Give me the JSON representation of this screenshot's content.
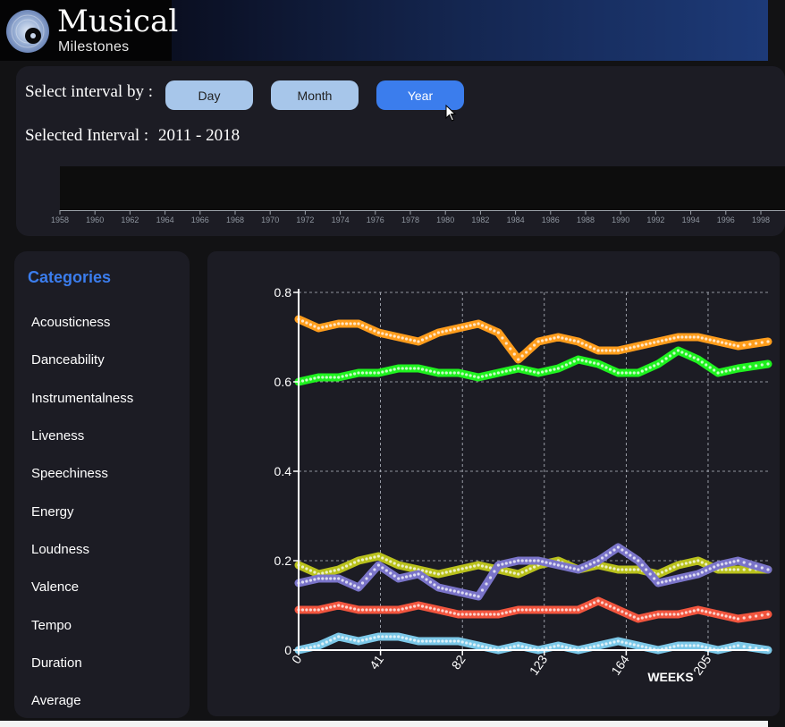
{
  "header": {
    "title": "Musical",
    "subtitle": "Milestones"
  },
  "interval": {
    "label": "Select interval by :",
    "buttons": [
      "Day",
      "Month",
      "Year"
    ],
    "active": "Year",
    "selected_label": "Selected Interval :",
    "selected_value": "2011 - 2018",
    "timeline_ticks": [
      "1958",
      "1960",
      "1962",
      "1964",
      "1966",
      "1968",
      "1970",
      "1972",
      "1974",
      "1976",
      "1978",
      "1980",
      "1982",
      "1984",
      "1986",
      "1988",
      "1990",
      "1992",
      "1994",
      "1996",
      "1998"
    ]
  },
  "categories": {
    "title": "Categories",
    "items": [
      "Acousticness",
      "Danceability",
      "Instrumentalness",
      "Liveness",
      "Speechiness",
      "Energy",
      "Loudness",
      "Valence",
      "Tempo",
      "Duration",
      "Average"
    ]
  },
  "colors": {
    "accent": "#3b7ded",
    "button_inactive": "#a7c6ea",
    "panel": "#1c1c24"
  },
  "chart_data": {
    "type": "scatter",
    "xlabel": "WEEKS",
    "ylabel": "",
    "xlim": [
      0,
      235
    ],
    "ylim": [
      0,
      0.8
    ],
    "x_ticks": [
      0,
      41,
      82,
      123,
      164,
      205
    ],
    "y_ticks": [
      0,
      0.2,
      0.4,
      0.6,
      0.8
    ],
    "grid": true,
    "series": [
      {
        "color": "#ff9d1c",
        "x": [
          0,
          10,
          20,
          30,
          40,
          50,
          60,
          70,
          80,
          90,
          100,
          110,
          120,
          130,
          140,
          150,
          160,
          170,
          180,
          190,
          200,
          210,
          220,
          235
        ],
        "values": [
          0.74,
          0.72,
          0.73,
          0.73,
          0.71,
          0.7,
          0.69,
          0.71,
          0.72,
          0.73,
          0.71,
          0.65,
          0.69,
          0.7,
          0.69,
          0.67,
          0.67,
          0.68,
          0.69,
          0.7,
          0.7,
          0.69,
          0.68,
          0.69
        ]
      },
      {
        "color": "#1ff21f",
        "x": [
          0,
          10,
          20,
          30,
          40,
          50,
          60,
          70,
          80,
          90,
          100,
          110,
          120,
          130,
          140,
          150,
          160,
          170,
          180,
          190,
          200,
          210,
          220,
          235
        ],
        "values": [
          0.6,
          0.61,
          0.61,
          0.62,
          0.62,
          0.63,
          0.63,
          0.62,
          0.62,
          0.61,
          0.62,
          0.63,
          0.62,
          0.63,
          0.65,
          0.64,
          0.62,
          0.62,
          0.64,
          0.67,
          0.65,
          0.62,
          0.63,
          0.64
        ]
      },
      {
        "color": "#b9c11c",
        "x": [
          0,
          10,
          20,
          30,
          40,
          50,
          60,
          70,
          80,
          90,
          100,
          110,
          120,
          130,
          140,
          150,
          160,
          170,
          180,
          190,
          200,
          210,
          220,
          235
        ],
        "values": [
          0.19,
          0.17,
          0.18,
          0.2,
          0.21,
          0.19,
          0.18,
          0.17,
          0.18,
          0.19,
          0.18,
          0.17,
          0.19,
          0.2,
          0.18,
          0.19,
          0.18,
          0.18,
          0.17,
          0.19,
          0.2,
          0.18,
          0.18,
          0.18
        ]
      },
      {
        "color": "#7a74c9",
        "x": [
          0,
          10,
          20,
          30,
          40,
          50,
          60,
          70,
          80,
          90,
          100,
          110,
          120,
          130,
          140,
          150,
          160,
          170,
          180,
          190,
          200,
          210,
          220,
          235
        ],
        "values": [
          0.15,
          0.16,
          0.16,
          0.14,
          0.19,
          0.16,
          0.17,
          0.14,
          0.13,
          0.12,
          0.19,
          0.2,
          0.2,
          0.19,
          0.18,
          0.2,
          0.23,
          0.2,
          0.15,
          0.16,
          0.17,
          0.19,
          0.2,
          0.18
        ]
      },
      {
        "color": "#f2553e",
        "x": [
          0,
          10,
          20,
          30,
          40,
          50,
          60,
          70,
          80,
          90,
          100,
          110,
          120,
          130,
          140,
          150,
          160,
          170,
          180,
          190,
          200,
          210,
          220,
          235
        ],
        "values": [
          0.09,
          0.09,
          0.1,
          0.09,
          0.09,
          0.09,
          0.1,
          0.09,
          0.08,
          0.08,
          0.08,
          0.09,
          0.09,
          0.09,
          0.09,
          0.11,
          0.09,
          0.07,
          0.08,
          0.08,
          0.09,
          0.08,
          0.07,
          0.08
        ]
      },
      {
        "color": "#7cc8e8",
        "x": [
          0,
          10,
          20,
          30,
          40,
          50,
          60,
          70,
          80,
          90,
          100,
          110,
          120,
          130,
          140,
          150,
          160,
          170,
          180,
          190,
          200,
          210,
          220,
          235
        ],
        "values": [
          0.0,
          0.01,
          0.03,
          0.02,
          0.03,
          0.03,
          0.02,
          0.02,
          0.02,
          0.01,
          0.0,
          0.01,
          0.0,
          0.01,
          0.0,
          0.01,
          0.02,
          0.01,
          0.0,
          0.01,
          0.01,
          0.0,
          0.01,
          0.0
        ]
      }
    ]
  }
}
